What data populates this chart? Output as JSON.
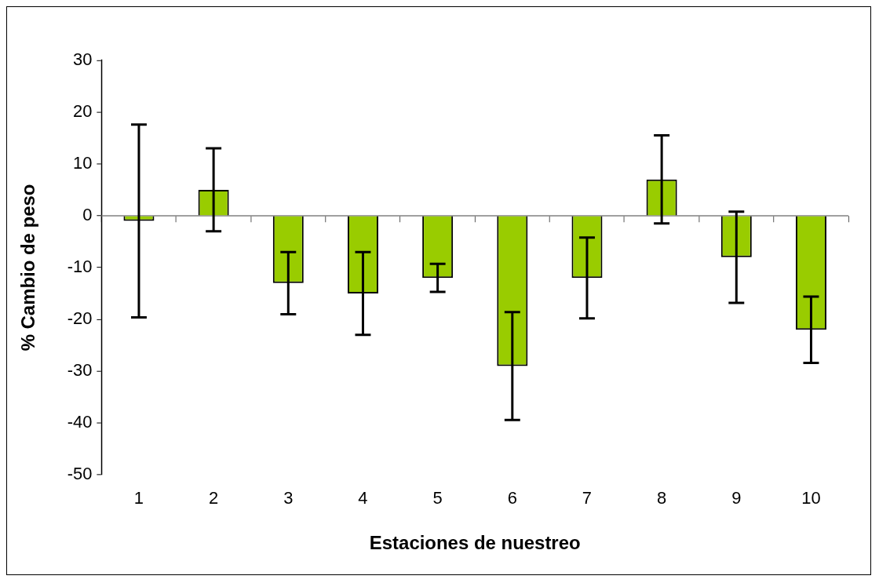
{
  "chart_data": {
    "type": "bar",
    "xlabel": "Estaciones de nuestreo",
    "ylabel": "% Cambio de peso",
    "categories": [
      "1",
      "2",
      "3",
      "4",
      "5",
      "6",
      "7",
      "8",
      "9",
      "10"
    ],
    "values": [
      -1,
      5,
      -13,
      -15,
      -12,
      -29,
      -12,
      7,
      -8,
      -22
    ],
    "errors": [
      18.6,
      8,
      6,
      8,
      2.7,
      10.4,
      7.8,
      8.5,
      8.8,
      6.4
    ],
    "color": "#99cc00",
    "ylim": [
      -50,
      30
    ],
    "yticks": [
      -50,
      -40,
      -30,
      -20,
      -10,
      0,
      10,
      20,
      30
    ],
    "grid": false,
    "legend": false,
    "ref_lines": [
      {
        "axis": "y",
        "value": 0,
        "color": "#808080"
      }
    ]
  }
}
